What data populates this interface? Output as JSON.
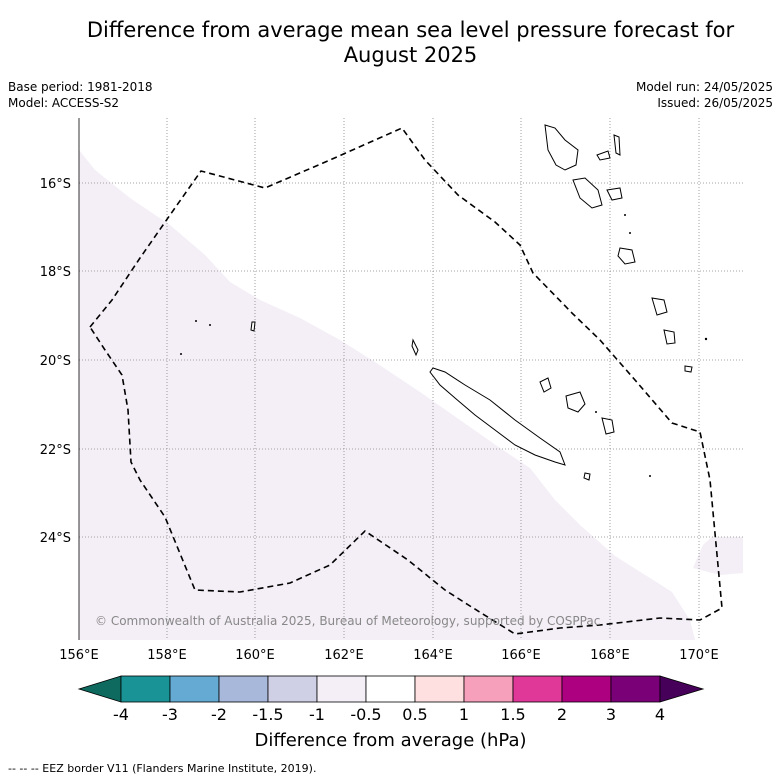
{
  "title": "Difference from average mean sea level pressure forecast for August 2025",
  "title_line1": "Difference from average mean sea level pressure forecast for",
  "title_line2": "August 2025",
  "meta": {
    "base_period": "Base period: 1981-2018",
    "model": "Model: ACCESS-S2",
    "model_run": "Model run: 24/05/2025",
    "issued": "Issued: 26/05/2025"
  },
  "map": {
    "lat_labels": [
      "16°S",
      "18°S",
      "20°S",
      "22°S",
      "24°S"
    ],
    "lon_labels": [
      "156°E",
      "158°E",
      "160°E",
      "162°E",
      "164°E",
      "166°E",
      "168°E",
      "170°E"
    ],
    "copyright": "© Commonwealth of Australia 2025, Bureau of Meteorology, supported by COSPPac",
    "anomaly_fill_color": "#f4eef6"
  },
  "colorbar": {
    "tick_labels": [
      "-4",
      "-3",
      "-2",
      "-1.5",
      "-1",
      "-0.5",
      "0.5",
      "1",
      "1.5",
      "2",
      "3",
      "4"
    ],
    "colors": [
      "#0e6a5e",
      "#1a9396",
      "#64aad2",
      "#a7b8da",
      "#cfcfe6",
      "#f4eef6",
      "#ffffff",
      "#fee0e0",
      "#f7a0bc",
      "#df3898",
      "#ad0080",
      "#7a0077",
      "#46005a"
    ],
    "label": "Difference from average (hPa)"
  },
  "footer": "--  --  -- EEZ border V11 (Flanders Marine Institute, 2019)."
}
